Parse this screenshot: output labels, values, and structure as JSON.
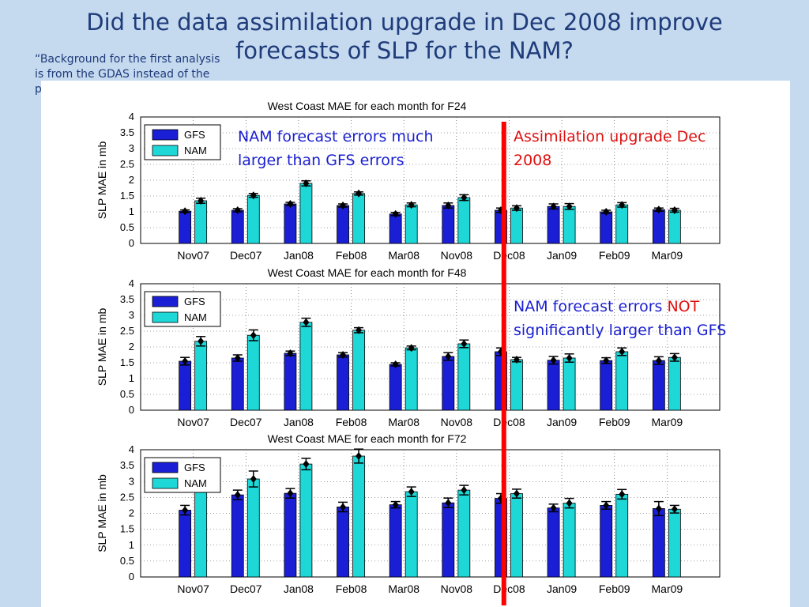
{
  "slide": {
    "title": "Did the data assimilation upgrade in Dec 2008 improve forecasts of SLP for the NAM?",
    "quote": "“Background for the first analysis is from the GDAS instead of the previous NDAS”"
  },
  "annotations": {
    "nam_much": "NAM forecast errors much larger than GFS errors",
    "upgrade": "Assimilation upgrade Dec 2008",
    "not_sig_pre": "NAM forecast errors ",
    "not_sig_red": "NOT",
    "not_sig_post": " significantly larger than GFS"
  },
  "colors": {
    "gfs": "#1a1fd6",
    "nam": "#1ed8d8",
    "upgrade_line": "#ff0000",
    "annotation_blue": "#1a1fcf",
    "annotation_red": "#e01010"
  },
  "chart_data": [
    {
      "type": "bar",
      "title": "West Coast MAE for each month for F24",
      "ylabel": "SLP MAE in mb",
      "xlabel": "",
      "ylim": [
        0,
        4
      ],
      "yticks": [
        "0",
        "0.5",
        "1",
        "1.5",
        "2",
        "2.5",
        "3",
        "3.5",
        "4"
      ],
      "grid": true,
      "legend_position": "top-left",
      "categories": [
        "Nov07",
        "Dec07",
        "Jan08",
        "Feb08",
        "Mar08",
        "Nov08",
        "Dec08",
        "Jan09",
        "Feb09",
        "Mar09"
      ],
      "series": [
        {
          "name": "GFS",
          "values": [
            1.02,
            1.05,
            1.25,
            1.2,
            0.93,
            1.2,
            1.05,
            1.17,
            1.0,
            1.07
          ]
        },
        {
          "name": "NAM",
          "values": [
            1.35,
            1.52,
            1.9,
            1.58,
            1.22,
            1.45,
            1.12,
            1.17,
            1.22,
            1.05
          ]
        }
      ],
      "error_bars": [
        [
          0.04,
          0.05,
          0.05,
          0.05,
          0.05,
          0.08,
          0.07,
          0.08,
          0.05,
          0.05
        ],
        [
          0.08,
          0.06,
          0.08,
          0.05,
          0.06,
          0.09,
          0.07,
          0.09,
          0.07,
          0.06
        ]
      ]
    },
    {
      "type": "bar",
      "title": "West Coast MAE for each month for F48",
      "ylabel": "SLP MAE in mb",
      "xlabel": "",
      "ylim": [
        0,
        4
      ],
      "yticks": [
        "0",
        "0.5",
        "1",
        "1.5",
        "2",
        "2.5",
        "3",
        "3.5",
        "4"
      ],
      "grid": true,
      "legend_position": "top-left",
      "categories": [
        "Nov07",
        "Dec07",
        "Jan08",
        "Feb08",
        "Mar08",
        "Nov08",
        "Dec08",
        "Jan09",
        "Feb09",
        "Mar09"
      ],
      "series": [
        {
          "name": "GFS",
          "values": [
            1.55,
            1.65,
            1.8,
            1.75,
            1.45,
            1.7,
            1.85,
            1.58,
            1.57,
            1.57
          ]
        },
        {
          "name": "NAM",
          "values": [
            2.18,
            2.37,
            2.78,
            2.53,
            1.97,
            2.1,
            1.6,
            1.65,
            1.85,
            1.67
          ]
        }
      ],
      "error_bars": [
        [
          0.12,
          0.1,
          0.07,
          0.07,
          0.05,
          0.12,
          0.12,
          0.12,
          0.09,
          0.12
        ],
        [
          0.15,
          0.17,
          0.13,
          0.08,
          0.06,
          0.12,
          0.07,
          0.13,
          0.12,
          0.12
        ]
      ]
    },
    {
      "type": "bar",
      "title": "West Coast MAE for each month for F72",
      "ylabel": "SLP MAE in mb",
      "xlabel": "",
      "ylim": [
        0,
        4
      ],
      "yticks": [
        "0",
        "0.5",
        "1",
        "1.5",
        "2",
        "2.5",
        "3",
        "3.5",
        "4"
      ],
      "grid": true,
      "legend_position": "top-left",
      "categories": [
        "Nov07",
        "Dec07",
        "Jan08",
        "Feb08",
        "Mar08",
        "Nov08",
        "Dec08",
        "Jan09",
        "Feb09",
        "Mar09"
      ],
      "series": [
        {
          "name": "GFS",
          "values": [
            2.1,
            2.58,
            2.63,
            2.2,
            2.27,
            2.33,
            2.47,
            2.17,
            2.25,
            2.15
          ]
        },
        {
          "name": "NAM",
          "values": [
            2.95,
            3.08,
            3.55,
            3.8,
            2.68,
            2.73,
            2.62,
            2.32,
            2.6,
            2.13
          ]
        }
      ],
      "error_bars": [
        [
          0.15,
          0.15,
          0.15,
          0.15,
          0.1,
          0.15,
          0.15,
          0.12,
          0.12,
          0.22
        ],
        [
          0.2,
          0.25,
          0.18,
          0.22,
          0.15,
          0.15,
          0.14,
          0.15,
          0.15,
          0.12
        ]
      ]
    }
  ]
}
